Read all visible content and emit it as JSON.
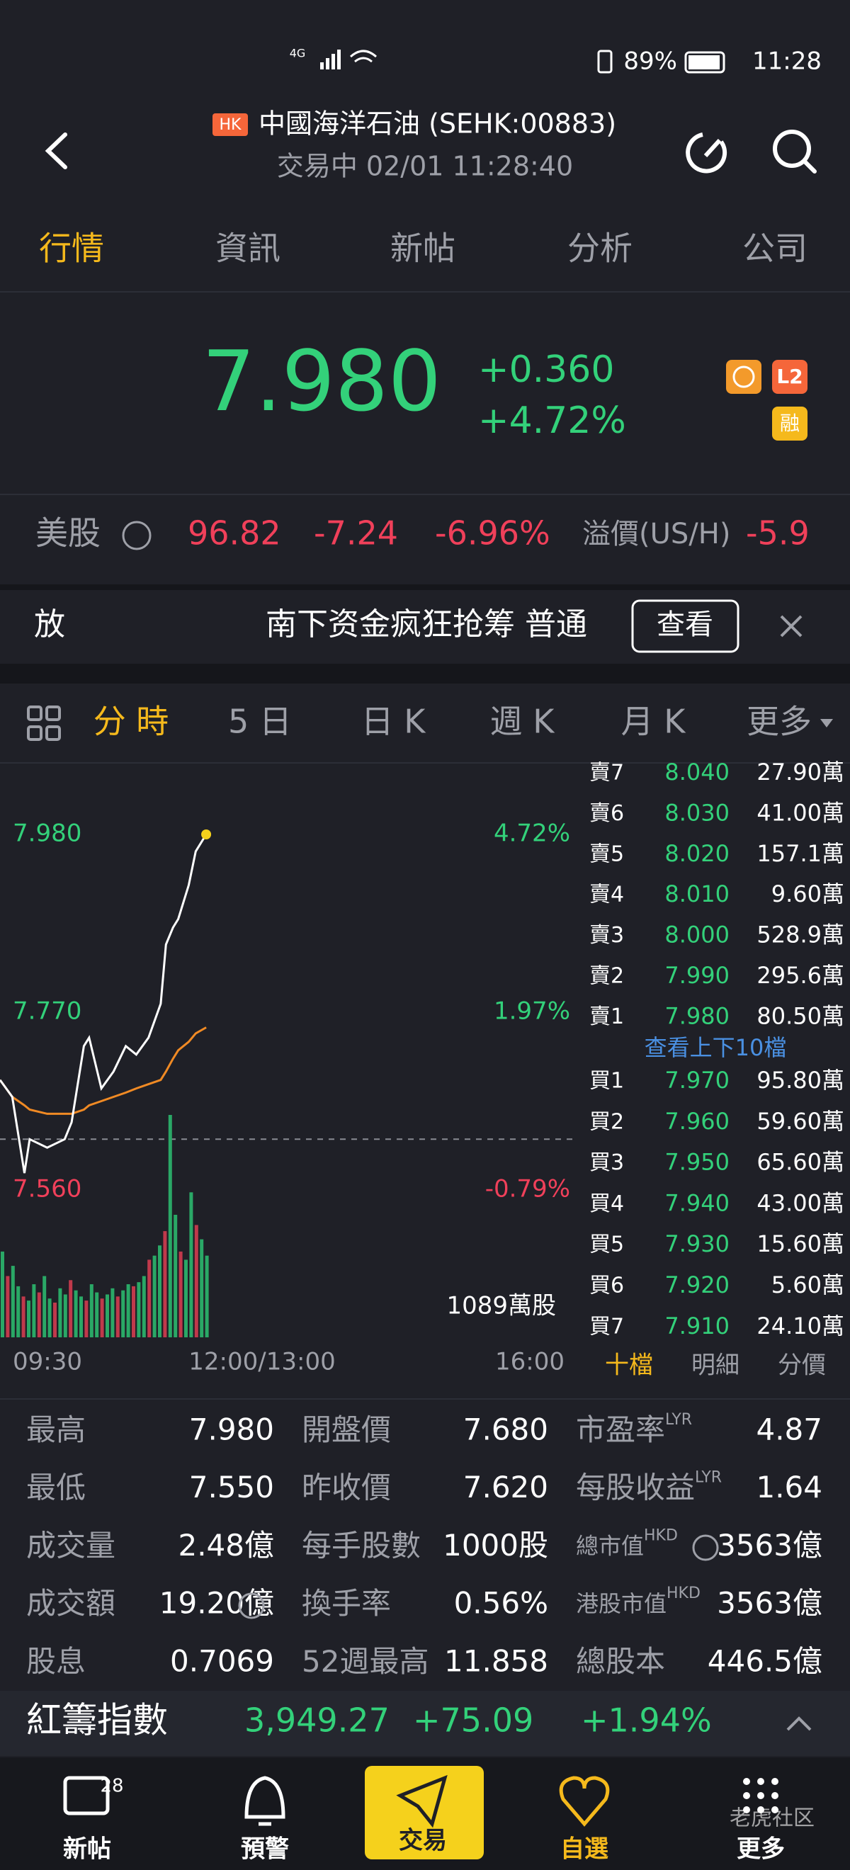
{
  "status_bar": {
    "network": "4G",
    "battery": "89%",
    "time": "11:28"
  },
  "header": {
    "badge": "HK",
    "title": "中國海洋石油 (SEHK:00883)",
    "subtitle": "交易中 02/01 11:28:40"
  },
  "tabs": [
    "行情",
    "資訊",
    "新帖",
    "分析",
    "公司"
  ],
  "quote": {
    "price": "7.980",
    "change": "+0.360",
    "change_pct": "+4.72%",
    "badges": [
      "L2",
      "融"
    ]
  },
  "us_row": {
    "label": "美股",
    "price": "96.82",
    "change": "-7.24",
    "change_pct": "-6.96%",
    "premium_label": "溢價(US/H)",
    "premium": "-5.9"
  },
  "news": {
    "tag": "放",
    "headline": "南下资金疯狂抢筹 普通",
    "button": "查看"
  },
  "chart_tabs": [
    "分 時",
    "5 日",
    "日 K",
    "週 K",
    "月 K",
    "更多"
  ],
  "intraday": {
    "price_labels": [
      "7.980",
      "7.770",
      "7.560"
    ],
    "pct_labels": [
      "4.72%",
      "1.97%",
      "-0.79%"
    ],
    "time_labels": [
      "09:30",
      "12:00/13:00",
      "16:00"
    ],
    "volume_label": "1089萬股",
    "minutes": [
      0,
      7,
      14,
      17,
      27,
      37,
      41,
      48,
      51,
      58,
      65,
      72,
      78,
      85,
      92,
      95,
      99,
      102,
      108,
      112,
      118
    ],
    "prices": [
      7.69,
      7.67,
      7.58,
      7.62,
      7.61,
      7.62,
      7.64,
      7.73,
      7.74,
      7.68,
      7.7,
      7.73,
      7.72,
      7.74,
      7.78,
      7.85,
      7.87,
      7.88,
      7.92,
      7.96,
      7.98
    ],
    "averages": [
      7.69,
      7.67,
      7.66,
      7.655,
      7.65,
      7.65,
      7.65,
      7.655,
      7.66,
      7.665,
      7.67,
      7.675,
      7.68,
      7.685,
      7.69,
      7.7,
      7.715,
      7.725,
      7.735,
      7.745,
      7.752
    ],
    "volumes": [
      420,
      300,
      350,
      250,
      200,
      180,
      260,
      220,
      300,
      190,
      170,
      240,
      210,
      280,
      230,
      200,
      180,
      260,
      220,
      190,
      210,
      240,
      200,
      230,
      260,
      250,
      270,
      300,
      380,
      400,
      450,
      520,
      1089,
      600,
      420,
      380,
      710,
      550,
      480,
      400
    ]
  },
  "order_book": {
    "asks": [
      {
        "label": "賣7",
        "price": "8.040",
        "volume": "27.90萬"
      },
      {
        "label": "賣6",
        "price": "8.030",
        "volume": "41.00萬"
      },
      {
        "label": "賣5",
        "price": "8.020",
        "volume": "157.1萬"
      },
      {
        "label": "賣4",
        "price": "8.010",
        "volume": "9.60萬"
      },
      {
        "label": "賣3",
        "price": "8.000",
        "volume": "528.9萬"
      },
      {
        "label": "賣2",
        "price": "7.990",
        "volume": "295.6萬"
      },
      {
        "label": "賣1",
        "price": "7.980",
        "volume": "80.50萬"
      }
    ],
    "link": "查看上下10檔",
    "bids": [
      {
        "label": "買1",
        "price": "7.970",
        "volume": "95.80萬"
      },
      {
        "label": "買2",
        "price": "7.960",
        "volume": "59.60萬"
      },
      {
        "label": "買3",
        "price": "7.950",
        "volume": "65.60萬"
      },
      {
        "label": "買4",
        "price": "7.940",
        "volume": "43.00萬"
      },
      {
        "label": "買5",
        "price": "7.930",
        "volume": "15.60萬"
      },
      {
        "label": "買6",
        "price": "7.920",
        "volume": "5.60萬"
      },
      {
        "label": "買7",
        "price": "7.910",
        "volume": "24.10萬"
      }
    ],
    "tabs": [
      "十檔",
      "明細",
      "分價"
    ]
  },
  "stats": [
    [
      {
        "label": "最高",
        "value": "7.980"
      },
      {
        "label": "開盤價",
        "value": "7.680"
      },
      {
        "label": "市盈率",
        "sup": "LYR",
        "value": "4.87"
      }
    ],
    [
      {
        "label": "最低",
        "value": "7.550"
      },
      {
        "label": "昨收價",
        "value": "7.620"
      },
      {
        "label": "每股收益",
        "sup": "LYR",
        "value": "1.64"
      }
    ],
    [
      {
        "label": "成交量",
        "value": "2.48億"
      },
      {
        "label": "每手股數",
        "value": "1000股"
      },
      {
        "label": "總市值",
        "sup": "HKD",
        "value": "3563億"
      }
    ],
    [
      {
        "label": "成交額",
        "value": "19.20億"
      },
      {
        "label": "換手率",
        "value": "0.56%"
      },
      {
        "label": "港股市值",
        "sup": "HKD",
        "value": "3563億"
      }
    ],
    [
      {
        "label": "股息",
        "value": "0.7069"
      },
      {
        "label": "52週最高",
        "value": "11.858"
      },
      {
        "label": "總股本",
        "value": "446.5億"
      }
    ]
  ],
  "index_bar": {
    "name": "紅籌指數",
    "value": "3,949.27",
    "change": "+75.09",
    "change_pct": "+1.94%"
  },
  "nav": [
    {
      "label": "新帖",
      "badge": "28"
    },
    {
      "label": "預警"
    },
    {
      "label": "交易"
    },
    {
      "label": "自選"
    },
    {
      "label": "更多"
    }
  ],
  "watermark": "老虎社区"
}
